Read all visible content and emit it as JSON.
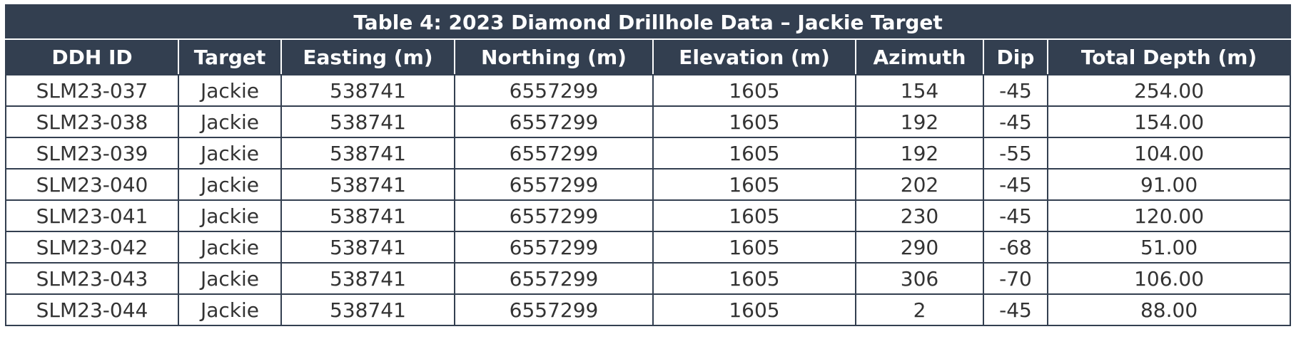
{
  "table": {
    "title": "Table 4: 2023 Diamond Drillhole Data – Jackie Target",
    "columns": [
      "DDH ID",
      "Target",
      "Easting (m)",
      "Northing (m)",
      "Elevation (m)",
      "Azimuth",
      "Dip",
      "Total Depth (m)"
    ],
    "rows": [
      [
        "SLM23-037",
        "Jackie",
        "538741",
        "6557299",
        "1605",
        "154",
        "-45",
        "254.00"
      ],
      [
        "SLM23-038",
        "Jackie",
        "538741",
        "6557299",
        "1605",
        "192",
        "-45",
        "154.00"
      ],
      [
        "SLM23-039",
        "Jackie",
        "538741",
        "6557299",
        "1605",
        "192",
        "-55",
        "104.00"
      ],
      [
        "SLM23-040",
        "Jackie",
        "538741",
        "6557299",
        "1605",
        "202",
        "-45",
        "91.00"
      ],
      [
        "SLM23-041",
        "Jackie",
        "538741",
        "6557299",
        "1605",
        "230",
        "-45",
        "120.00"
      ],
      [
        "SLM23-042",
        "Jackie",
        "538741",
        "6557299",
        "1605",
        "290",
        "-68",
        "51.00"
      ],
      [
        "SLM23-043",
        "Jackie",
        "538741",
        "6557299",
        "1605",
        "306",
        "-70",
        "106.00"
      ],
      [
        "SLM23-044",
        "Jackie",
        "538741",
        "6557299",
        "1605",
        "2",
        "-45",
        "88.00"
      ]
    ]
  }
}
